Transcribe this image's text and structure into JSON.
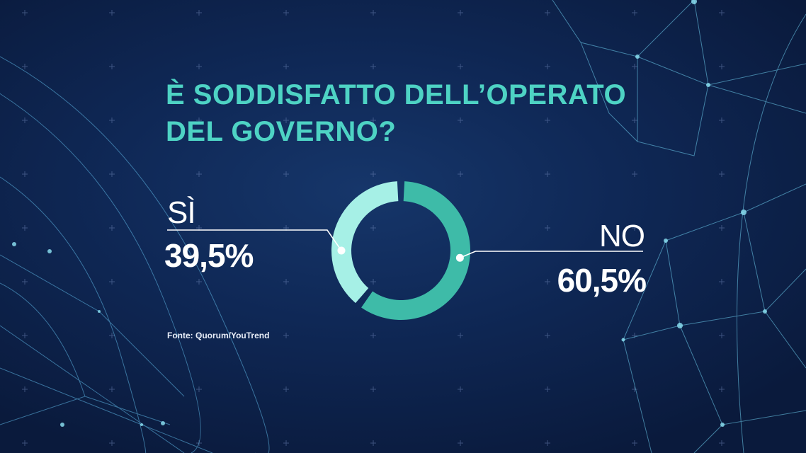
{
  "title_lines": [
    "È SODDISFATTO DELL’OPERATO",
    "DEL GOVERNO?"
  ],
  "chart_data": {
    "type": "pie",
    "donut": true,
    "title": "È SODDISFATTO DELL’OPERATO DEL GOVERNO?",
    "categories": [
      "SÌ",
      "NO"
    ],
    "values": [
      39.5,
      60.5
    ],
    "value_labels": [
      "39,5%",
      "60,5%"
    ],
    "colors": [
      "#a6f0e6",
      "#3ebba8"
    ]
  },
  "source": "Fonte: Quorum/YouTrend",
  "colors": {
    "background": "#0f2856",
    "title": "#4ed3c4",
    "text": "#ffffff",
    "leader_line": "#ffffff"
  }
}
